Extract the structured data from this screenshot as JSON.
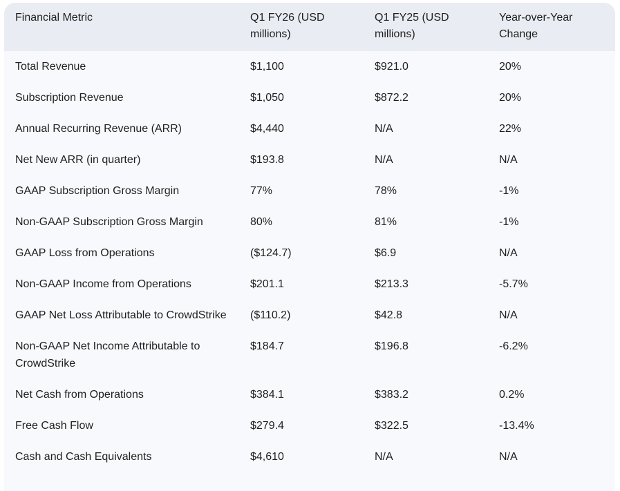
{
  "table": {
    "headers": [
      "Financial Metric",
      "Q1 FY26 (USD millions)",
      "Q1 FY25 (USD millions)",
      "Year-over-Year Change"
    ],
    "rows": [
      [
        "Total Revenue",
        "$1,100",
        "$921.0",
        "20%"
      ],
      [
        "Subscription Revenue",
        "$1,050",
        "$872.2",
        "20%"
      ],
      [
        "Annual Recurring Revenue (ARR)",
        "$4,440",
        "N/A",
        "22%"
      ],
      [
        "Net New ARR (in quarter)",
        "$193.8",
        "N/A",
        "N/A"
      ],
      [
        "GAAP Subscription Gross Margin",
        "77%",
        "78%",
        "-1%"
      ],
      [
        "Non-GAAP Subscription Gross Margin",
        "80%",
        "81%",
        "-1%"
      ],
      [
        "GAAP Loss from Operations",
        "($124.7)",
        "$6.9",
        "N/A"
      ],
      [
        "Non-GAAP Income from Operations",
        "$201.1",
        "$213.3",
        "-5.7%"
      ],
      [
        "GAAP Net Loss Attributable to CrowdStrike",
        "($110.2)",
        "$42.8",
        "N/A"
      ],
      [
        "Non-GAAP Net Income Attributable to CrowdStrike",
        "$184.7",
        "$196.8",
        "-6.2%"
      ],
      [
        "Net Cash from Operations",
        "$384.1",
        "$383.2",
        "0.2%"
      ],
      [
        "Free Cash Flow",
        "$279.4",
        "$322.5",
        "-13.4%"
      ],
      [
        "Cash and Cash Equivalents",
        "$4,610",
        "N/A",
        "N/A"
      ]
    ]
  }
}
